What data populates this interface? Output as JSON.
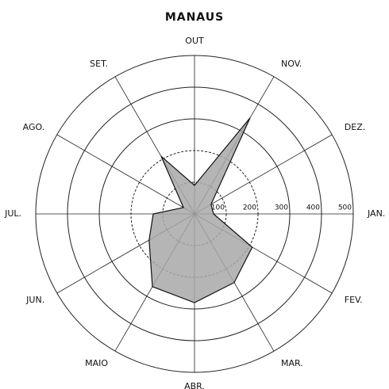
{
  "chart_data": {
    "type": "radar",
    "title": "MANAUS",
    "categories": [
      "JAN.",
      "FEV.",
      "MAR.",
      "ABR.",
      "MAIO",
      "JUN.",
      "JUL.",
      "AGO.",
      "SET.",
      "OUT",
      "NOV.",
      "DEZ."
    ],
    "values": [
      60,
      210,
      250,
      280,
      265,
      165,
      130,
      40,
      210,
      90,
      350,
      60
    ],
    "color": "#a8a8a8",
    "rlim": [
      0,
      500
    ],
    "rticks": [
      100,
      200,
      300,
      400,
      500
    ],
    "grid": true
  }
}
